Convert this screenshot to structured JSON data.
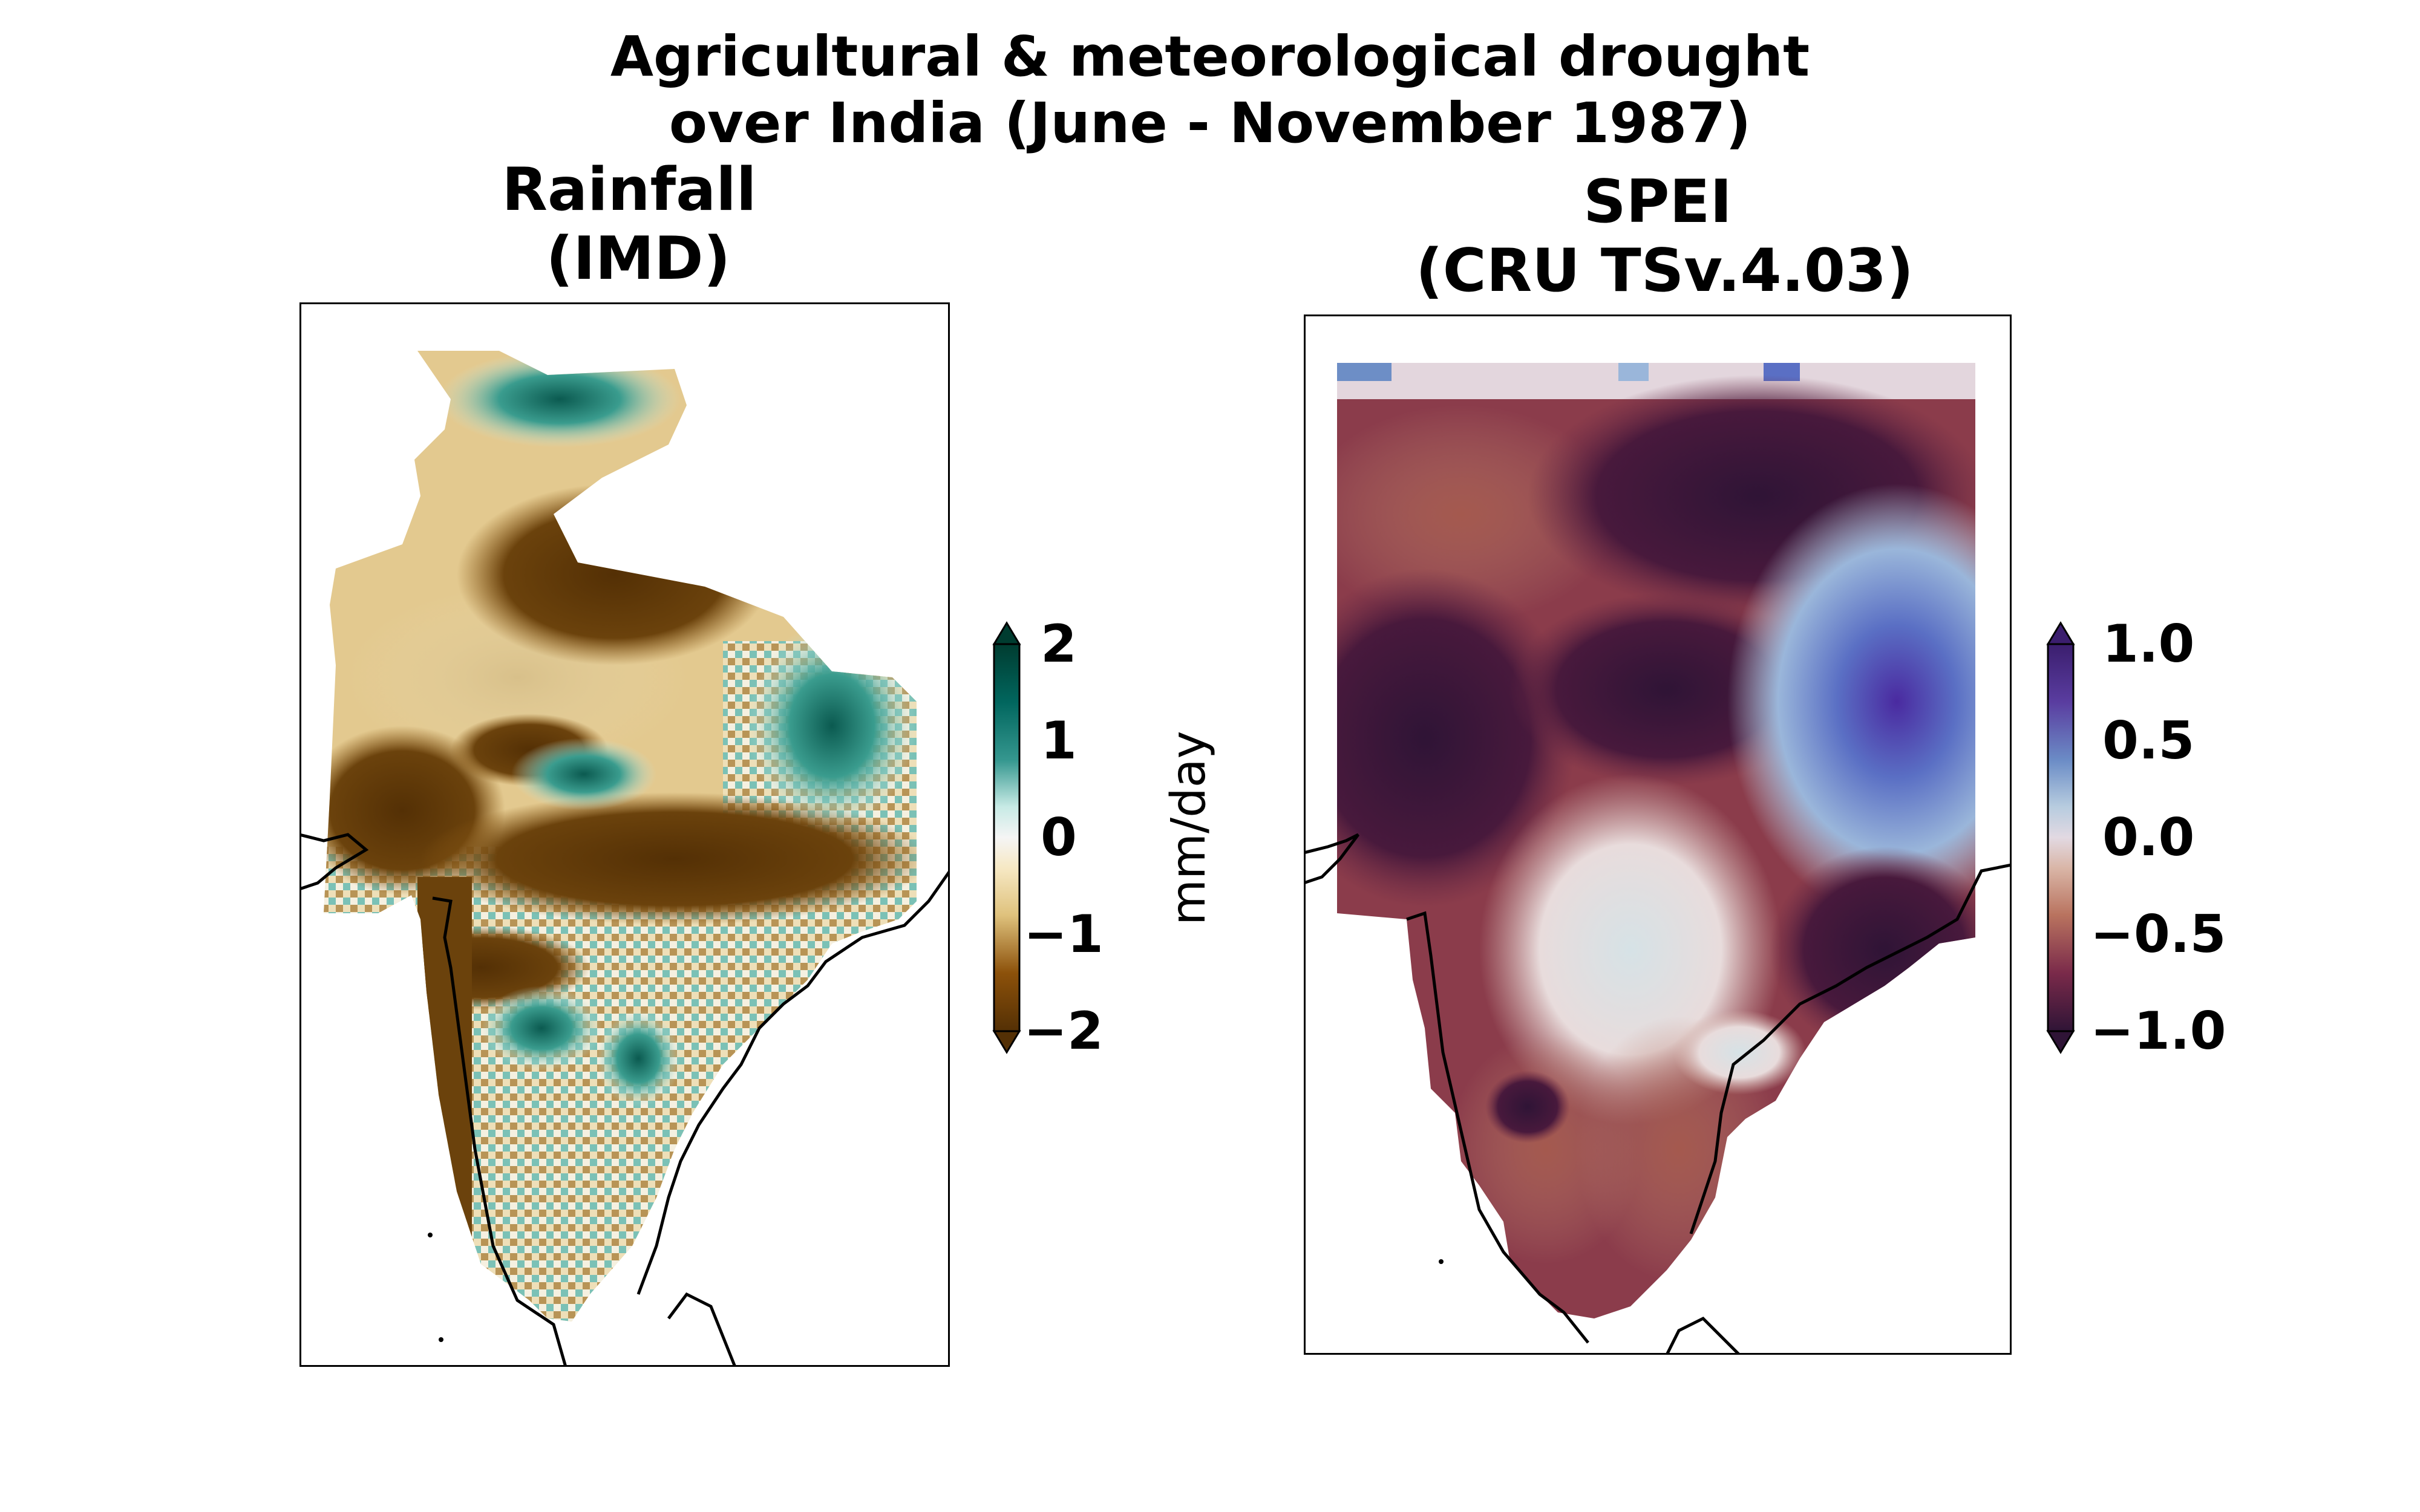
{
  "figure": {
    "title_line1": "Agricultural & meteorological drought",
    "title_line2": "over India (June - November 1987)"
  },
  "panels": [
    {
      "title_line1": "Rainfall",
      "title_line2": "(IMD)",
      "colormap": "brown-white-teal (BrBG)",
      "colors": {
        "neg": "#543005",
        "mid": "#f5f5f5",
        "pos": "#003c30"
      },
      "colorbar": {
        "label": "mm/day",
        "ticks": [
          "2",
          "1",
          "0",
          "−1",
          "−2"
        ],
        "range": [
          -2,
          2
        ],
        "extend": "both"
      }
    },
    {
      "title_line1": "SPEI",
      "title_line2": "(CRU TSv.4.03)",
      "colormap": "purple-white-blue-purple (twilight_shifted)",
      "colors": {
        "neg": "#2f1436",
        "mid": "#e2d9e2",
        "pos": "#3b1e6e"
      },
      "colorbar": {
        "label": "",
        "ticks": [
          "1.0",
          "0.5",
          "0.0",
          "−0.5",
          "−1.0"
        ],
        "range": [
          -1,
          1
        ],
        "extend": "both"
      }
    }
  ]
}
